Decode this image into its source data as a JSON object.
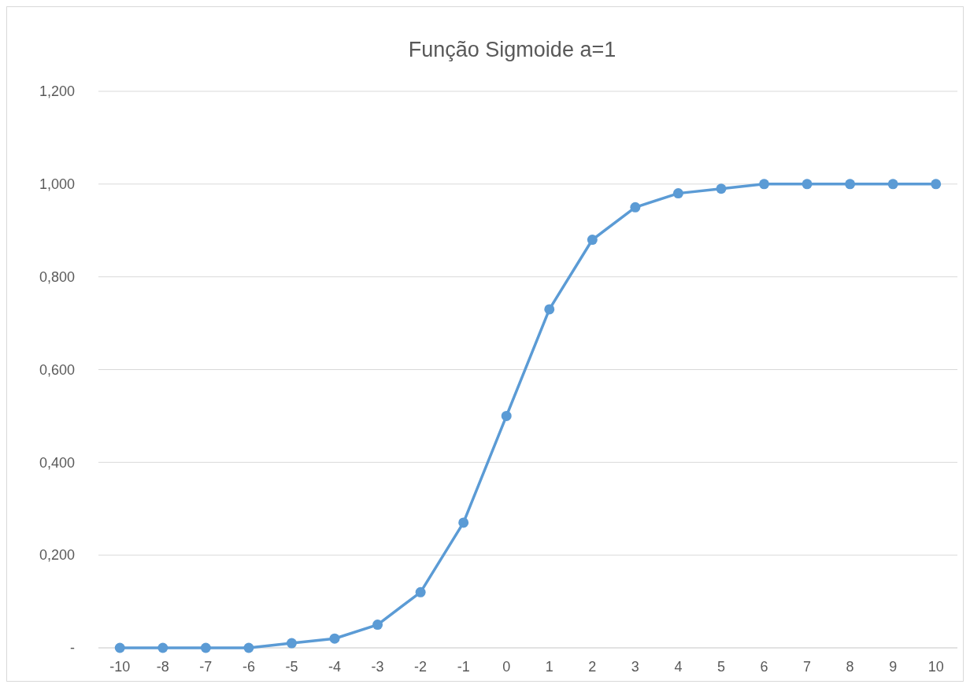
{
  "chart_data": {
    "type": "line",
    "title": "Função Sigmoide a=1",
    "categories": [
      "-10",
      "-8",
      "-7",
      "-6",
      "-5",
      "-4",
      "-3",
      "-2",
      "-1",
      "0",
      "1",
      "2",
      "3",
      "4",
      "5",
      "6",
      "7",
      "8",
      "9",
      "10"
    ],
    "series": [
      {
        "color": "#5b9bd5",
        "values": [
          0,
          0,
          0,
          0,
          0.01,
          0.02,
          0.05,
          0.12,
          0.27,
          0.5,
          0.73,
          0.88,
          0.95,
          0.98,
          0.99,
          1,
          1,
          1,
          1,
          1
        ]
      }
    ],
    "ylim": [
      0,
      1.2
    ],
    "yticks": [
      {
        "value": 0,
        "label": "-"
      },
      {
        "value": 0.2,
        "label": "0,200"
      },
      {
        "value": 0.4,
        "label": "0,400"
      },
      {
        "value": 0.6,
        "label": "0,600"
      },
      {
        "value": 0.8,
        "label": "0,800"
      },
      {
        "value": 1,
        "label": "1,000"
      },
      {
        "value": 1.2,
        "label": "1,200"
      }
    ],
    "grid": "y",
    "marker": "circle",
    "line_style": "solid"
  }
}
